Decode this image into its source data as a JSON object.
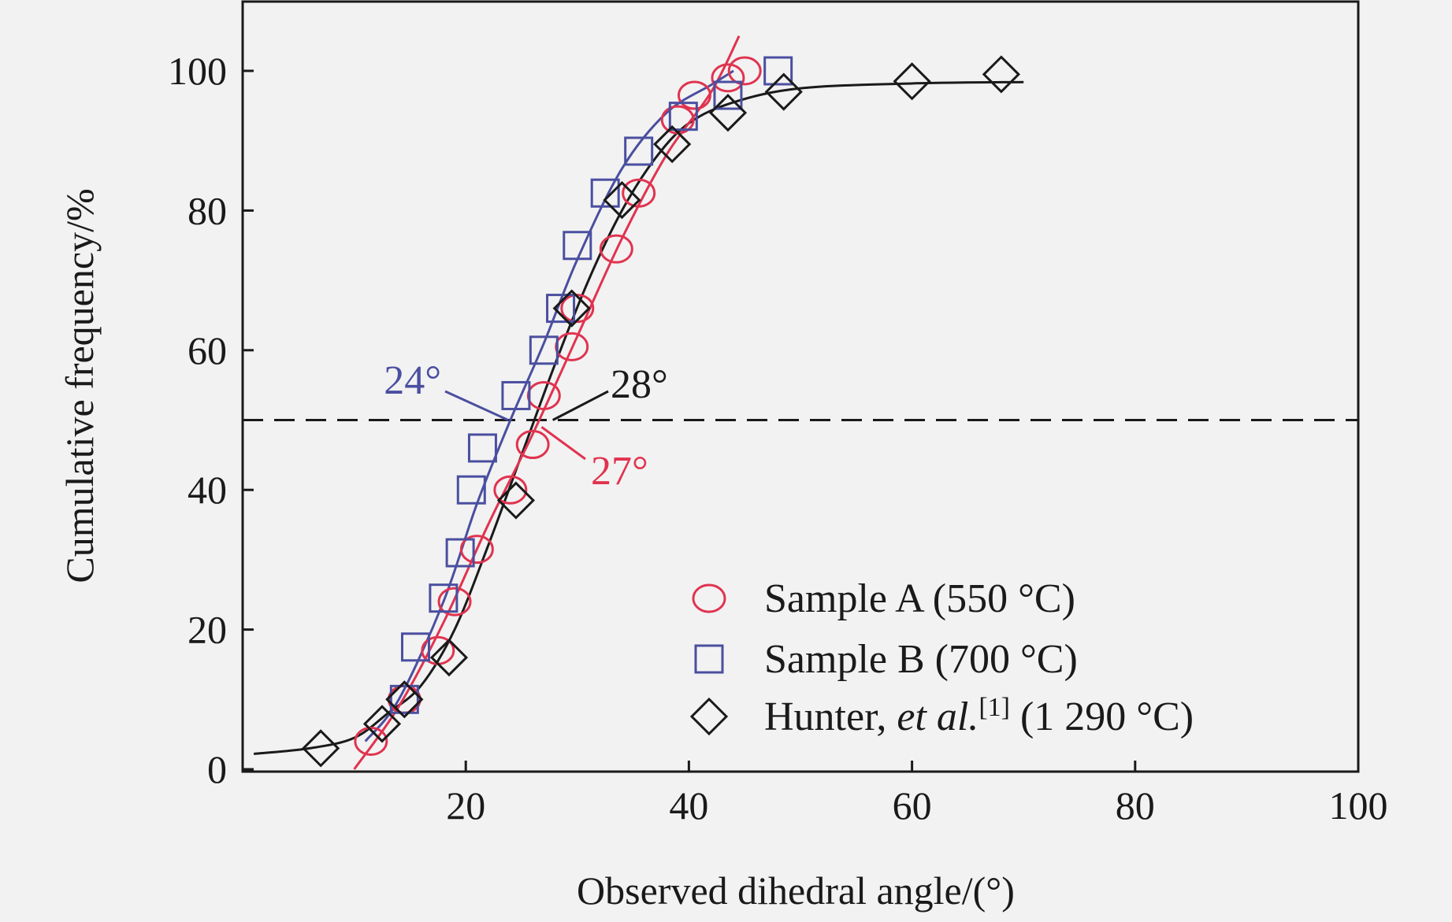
{
  "chart_data": {
    "type": "scatter",
    "xlabel": "Observed dihedral angle/(°)",
    "ylabel": "Cumulative frequency/%",
    "xlim": [
      0,
      100
    ],
    "ylim": [
      0,
      100
    ],
    "xticks": [
      20,
      40,
      60,
      80,
      100
    ],
    "yticks": [
      0,
      20,
      40,
      60,
      80,
      100
    ],
    "grid": false,
    "legend_position": "bottom-right",
    "reference_line": {
      "y": 50,
      "style": "dashed"
    },
    "series": [
      {
        "name": "Sample A (550 °C)",
        "marker": "circle",
        "color": "#e0334f",
        "points": [
          [
            11.5,
            4
          ],
          [
            14.5,
            10
          ],
          [
            17.5,
            17
          ],
          [
            19,
            24
          ],
          [
            21,
            31.5
          ],
          [
            24,
            40
          ],
          [
            26,
            46.5
          ],
          [
            27,
            53.5
          ],
          [
            29.5,
            60.5
          ],
          [
            30,
            66
          ],
          [
            33.5,
            74.5
          ],
          [
            35.5,
            82.5
          ],
          [
            39,
            93
          ],
          [
            40.5,
            96.5
          ],
          [
            43.5,
            99
          ],
          [
            45,
            100
          ]
        ],
        "fit_line": [
          [
            10,
            0
          ],
          [
            14,
            9
          ],
          [
            18,
            21
          ],
          [
            22,
            35
          ],
          [
            26,
            48
          ],
          [
            30,
            62
          ],
          [
            34,
            76
          ],
          [
            38,
            88
          ],
          [
            42,
            97
          ],
          [
            44.5,
            105
          ]
        ]
      },
      {
        "name": "Sample B (700 °C)",
        "marker": "square",
        "color": "#4a4fa0",
        "points": [
          [
            14.5,
            10
          ],
          [
            15.5,
            17.5
          ],
          [
            18,
            24.5
          ],
          [
            19.5,
            31
          ],
          [
            20.5,
            40
          ],
          [
            21.5,
            46
          ],
          [
            24.5,
            53.5
          ],
          [
            27,
            60
          ],
          [
            28.5,
            66
          ],
          [
            30,
            75
          ],
          [
            32.5,
            82.5
          ],
          [
            35.5,
            88.5
          ],
          [
            39.5,
            93.5
          ],
          [
            43.5,
            96.5
          ],
          [
            48,
            100
          ]
        ],
        "fit_line": [
          [
            11,
            4
          ],
          [
            14,
            10
          ],
          [
            18,
            24
          ],
          [
            21,
            38
          ],
          [
            24,
            50
          ],
          [
            27,
            61
          ],
          [
            30,
            73
          ],
          [
            34,
            86
          ],
          [
            38,
            94
          ],
          [
            42,
            98
          ],
          [
            44,
            100
          ]
        ]
      },
      {
        "name": "Hunter, et al.",
        "name_ref": "[1]",
        "name_suffix": " (1 290 °C)",
        "marker": "diamond",
        "color": "#1a1a1a",
        "points": [
          [
            7,
            3
          ],
          [
            12.5,
            6.5
          ],
          [
            14.5,
            10
          ],
          [
            18.5,
            16
          ],
          [
            24.5,
            38.5
          ],
          [
            29.5,
            66
          ],
          [
            34,
            81.5
          ],
          [
            38.5,
            89.5
          ],
          [
            43.5,
            94
          ],
          [
            48.5,
            97
          ],
          [
            60,
            98.5
          ],
          [
            68,
            99.5
          ]
        ],
        "fit_line": [
          [
            1,
            2.2
          ],
          [
            6,
            3
          ],
          [
            10,
            4.5
          ],
          [
            13,
            8
          ],
          [
            16,
            12
          ],
          [
            19,
            20
          ],
          [
            22,
            32
          ],
          [
            25,
            45
          ],
          [
            28,
            58
          ],
          [
            31,
            70
          ],
          [
            34,
            80
          ],
          [
            37,
            87.5
          ],
          [
            40,
            92.5
          ],
          [
            44,
            95.5
          ],
          [
            50,
            97.5
          ],
          [
            60,
            98.2
          ],
          [
            70,
            98.4
          ]
        ]
      }
    ],
    "annotations": [
      {
        "text": "24°",
        "color": "#4a4fa0",
        "arrow_to": [
          23.8,
          50
        ]
      },
      {
        "text": "28°",
        "color": "#1a1a1a",
        "arrow_to": [
          27.8,
          50
        ]
      },
      {
        "text": "27°",
        "color": "#e0334f",
        "arrow_to": [
          26.8,
          49
        ]
      }
    ]
  }
}
